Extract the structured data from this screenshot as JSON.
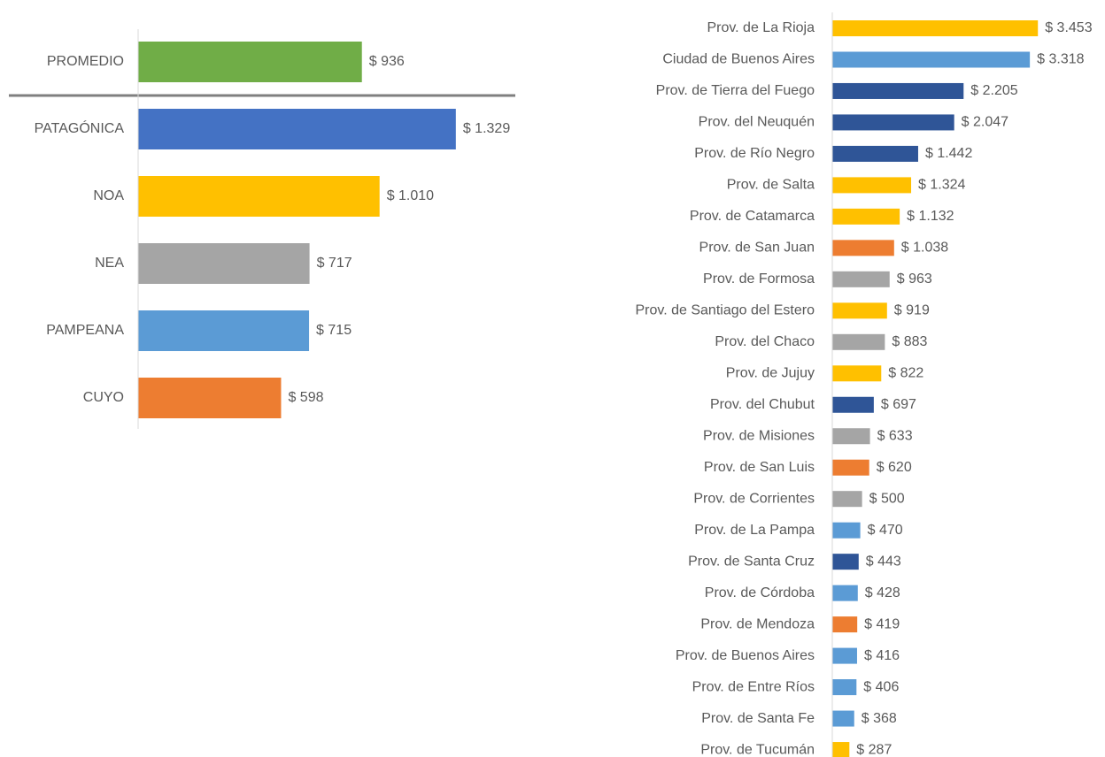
{
  "chart_data": [
    {
      "type": "bar",
      "orientation": "horizontal",
      "categories": [
        "PROMEDIO",
        "PATAGÓNICA",
        "NOA",
        "NEA",
        "PAMPEANA",
        "CUYO"
      ],
      "values": [
        936,
        1329,
        1010,
        717,
        715,
        598
      ],
      "value_labels": [
        "$ 936",
        "$ 1.329",
        "$ 1.010",
        "$ 717",
        "$ 715",
        "$ 598"
      ],
      "colors": [
        "#70ad47",
        "#4472c4",
        "#ffc000",
        "#a5a5a5",
        "#5b9bd5",
        "#ed7d31"
      ],
      "xlim": [
        0,
        1600
      ]
    },
    {
      "type": "bar",
      "orientation": "horizontal",
      "categories": [
        "Prov. de La Rioja",
        "Ciudad de Buenos Aires",
        "Prov. de Tierra del Fuego",
        "Prov. del Neuquén",
        "Prov. de Río Negro",
        "Prov. de Salta",
        "Prov. de Catamarca",
        "Prov. de San Juan",
        "Prov. de Formosa",
        "Prov. de Santiago del Estero",
        "Prov. del Chaco",
        "Prov. de Jujuy",
        "Prov. del Chubut",
        "Prov. de Misiones",
        "Prov. de San Luis",
        "Prov. de Corrientes",
        "Prov. de La Pampa",
        "Prov. de Santa Cruz",
        "Prov. de Córdoba",
        "Prov. de Mendoza",
        "Prov. de Buenos Aires",
        "Prov. de Entre Ríos",
        "Prov. de Santa Fe",
        "Prov. de Tucumán"
      ],
      "values": [
        3453,
        3318,
        2205,
        2047,
        1442,
        1324,
        1132,
        1038,
        963,
        919,
        883,
        822,
        697,
        633,
        620,
        500,
        470,
        443,
        428,
        419,
        416,
        406,
        368,
        287
      ],
      "value_labels": [
        "$ 3.453",
        "$ 3.318",
        "$ 2.205",
        "$ 2.047",
        "$ 1.442",
        "$ 1.324",
        "$ 1.132",
        "$ 1.038",
        "$ 963",
        "$ 919",
        "$ 883",
        "$ 822",
        "$ 697",
        "$ 633",
        "$ 620",
        "$ 500",
        "$ 470",
        "$ 443",
        "$ 428",
        "$ 419",
        "$ 416",
        "$ 406",
        "$ 368",
        "$ 287"
      ],
      "colors": [
        "#ffc000",
        "#5b9bd5",
        "#2f5597",
        "#2f5597",
        "#2f5597",
        "#ffc000",
        "#ffc000",
        "#ed7d31",
        "#a5a5a5",
        "#ffc000",
        "#a5a5a5",
        "#ffc000",
        "#2f5597",
        "#a5a5a5",
        "#ed7d31",
        "#a5a5a5",
        "#5b9bd5",
        "#2f5597",
        "#5b9bd5",
        "#ed7d31",
        "#5b9bd5",
        "#5b9bd5",
        "#5b9bd5",
        "#ffc000"
      ],
      "xlim": [
        0,
        4000
      ]
    }
  ]
}
